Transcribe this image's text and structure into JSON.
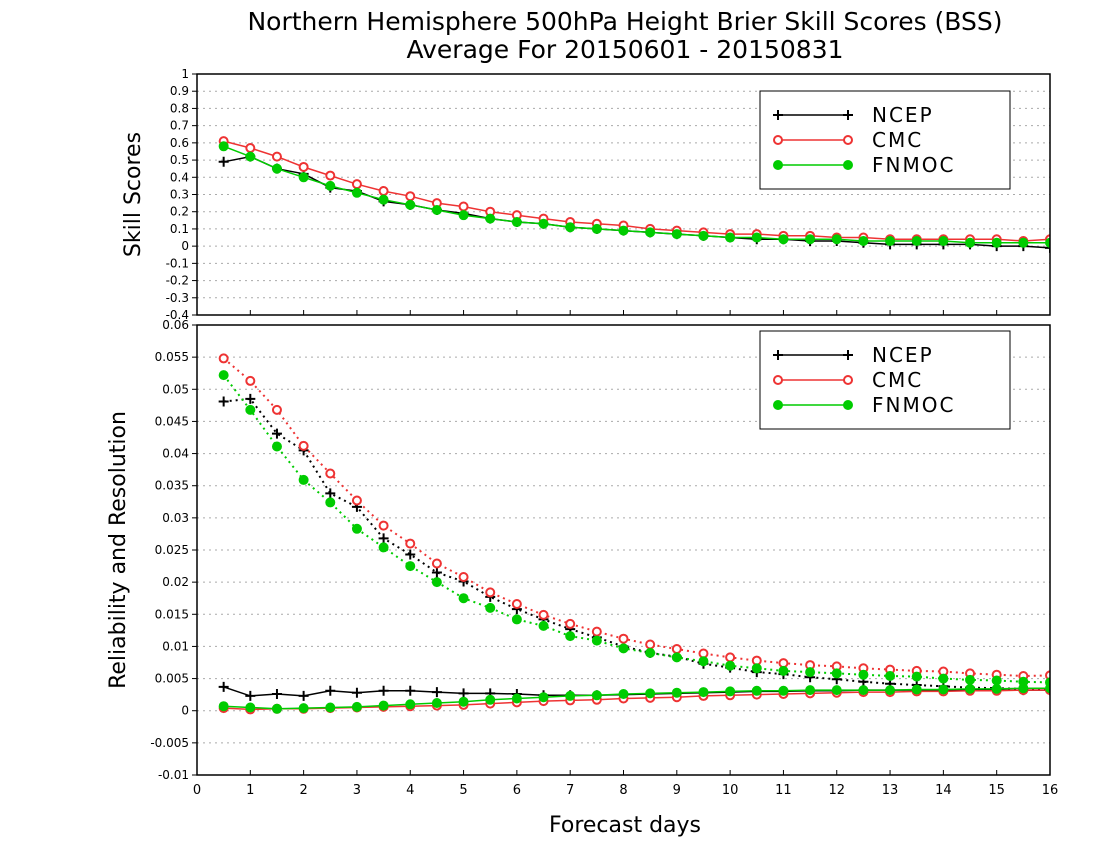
{
  "title_line1": "Northern Hemisphere 500hPa Height Brier Skill Scores (BSS)",
  "title_line2": "Average For 20150601 - 20150831",
  "xlabel": "Forecast days",
  "colors": {
    "NCEP": "#000000",
    "CMC": "#ee3333",
    "FNMOC": "#00cc00",
    "grid": "#aaaaaa"
  },
  "chart_data": [
    {
      "type": "line",
      "ylabel": "Skill Scores",
      "xlim": [
        0,
        16
      ],
      "ylim": [
        -0.4,
        1
      ],
      "x_ticks": [
        0,
        1,
        2,
        3,
        4,
        5,
        6,
        7,
        8,
        9,
        10,
        11,
        12,
        13,
        14,
        15,
        16
      ],
      "y_ticks": [
        -0.4,
        -0.3,
        -0.2,
        -0.1,
        0,
        0.1,
        0.2,
        0.3,
        0.4,
        0.5,
        0.6,
        0.7,
        0.8,
        0.9,
        1
      ],
      "y_tick_labels": [
        "-0.4",
        "-0.3",
        "-0.2",
        "-0.1",
        "0",
        "0.1",
        "0.2",
        "0.3",
        "0.4",
        "0.5",
        "0.6",
        "0.7",
        "0.8",
        "0.9",
        "1"
      ],
      "grid": "horizontal dotted",
      "legend": {
        "placement": "top-right",
        "entries": [
          "NCEP",
          "CMC",
          "FNMOC"
        ]
      },
      "x": [
        0.5,
        1,
        1.5,
        2,
        2.5,
        3,
        3.5,
        4,
        4.5,
        5,
        5.5,
        6,
        6.5,
        7,
        7.5,
        8,
        8.5,
        9,
        9.5,
        10,
        10.5,
        11,
        11.5,
        12,
        12.5,
        13,
        13.5,
        14,
        14.5,
        15,
        15.5,
        16
      ],
      "series": [
        {
          "name": "NCEP",
          "marker": "plus",
          "style": "solid",
          "values": [
            0.49,
            0.52,
            0.45,
            0.42,
            0.34,
            0.32,
            0.26,
            0.24,
            0.21,
            0.19,
            0.16,
            0.14,
            0.13,
            0.11,
            0.1,
            0.09,
            0.08,
            0.07,
            0.06,
            0.05,
            0.04,
            0.04,
            0.03,
            0.03,
            0.02,
            0.01,
            0.01,
            0.01,
            0.01,
            0.0,
            0.0,
            -0.01
          ]
        },
        {
          "name": "CMC",
          "marker": "open-circle",
          "style": "solid",
          "values": [
            0.61,
            0.57,
            0.52,
            0.46,
            0.41,
            0.36,
            0.32,
            0.29,
            0.25,
            0.23,
            0.2,
            0.18,
            0.16,
            0.14,
            0.13,
            0.12,
            0.1,
            0.09,
            0.08,
            0.07,
            0.07,
            0.06,
            0.06,
            0.05,
            0.05,
            0.04,
            0.04,
            0.04,
            0.04,
            0.04,
            0.03,
            0.04
          ]
        },
        {
          "name": "FNMOC",
          "marker": "filled-circle",
          "style": "solid",
          "values": [
            0.58,
            0.52,
            0.45,
            0.4,
            0.35,
            0.31,
            0.27,
            0.24,
            0.21,
            0.18,
            0.16,
            0.14,
            0.13,
            0.11,
            0.1,
            0.09,
            0.08,
            0.07,
            0.06,
            0.05,
            0.05,
            0.04,
            0.04,
            0.04,
            0.03,
            0.03,
            0.03,
            0.03,
            0.02,
            0.02,
            0.02,
            0.02
          ]
        }
      ]
    },
    {
      "type": "line",
      "ylabel": "Reliability and Resolution",
      "xlim": [
        0,
        16
      ],
      "ylim": [
        -0.01,
        0.06
      ],
      "x_ticks": [
        0,
        1,
        2,
        3,
        4,
        5,
        6,
        7,
        8,
        9,
        10,
        11,
        12,
        13,
        14,
        15,
        16
      ],
      "y_ticks": [
        -0.01,
        -0.005,
        0,
        0.005,
        0.01,
        0.015,
        0.02,
        0.025,
        0.03,
        0.035,
        0.04,
        0.045,
        0.05,
        0.055,
        0.06
      ],
      "y_tick_labels": [
        "-0.01",
        "-0.005",
        "0",
        "0.005",
        "0.01",
        "0.015",
        "0.02",
        "0.025",
        "0.03",
        "0.035",
        "0.04",
        "0.045",
        "0.05",
        "0.055",
        "0.06"
      ],
      "grid": "horizontal dotted",
      "legend": {
        "placement": "top-right",
        "entries": [
          "NCEP",
          "CMC",
          "FNMOC"
        ]
      },
      "x": [
        0.5,
        1,
        1.5,
        2,
        2.5,
        3,
        3.5,
        4,
        4.5,
        5,
        5.5,
        6,
        6.5,
        7,
        7.5,
        8,
        8.5,
        9,
        9.5,
        10,
        10.5,
        11,
        11.5,
        12,
        12.5,
        13,
        13.5,
        14,
        14.5,
        15,
        15.5,
        16
      ],
      "series": [
        {
          "name": "NCEP",
          "group": "resolution",
          "marker": "plus",
          "style": "dotted",
          "values": [
            0.0481,
            0.0485,
            0.0431,
            0.0405,
            0.0338,
            0.0317,
            0.0268,
            0.0243,
            0.0215,
            0.0201,
            0.0177,
            0.0158,
            0.0142,
            0.0127,
            0.0114,
            0.01,
            0.009,
            0.0084,
            0.0073,
            0.0067,
            0.006,
            0.0057,
            0.0052,
            0.0049,
            0.0045,
            0.0042,
            0.004,
            0.0038,
            0.0036,
            0.0035,
            0.0034,
            0.0032
          ]
        },
        {
          "name": "CMC",
          "group": "resolution",
          "marker": "open-circle",
          "style": "dotted",
          "values": [
            0.0548,
            0.0513,
            0.0468,
            0.0412,
            0.0369,
            0.0327,
            0.0288,
            0.026,
            0.0229,
            0.0208,
            0.0184,
            0.0166,
            0.0149,
            0.0135,
            0.0123,
            0.0112,
            0.0103,
            0.0096,
            0.0089,
            0.0083,
            0.0078,
            0.0074,
            0.0071,
            0.0069,
            0.0066,
            0.0064,
            0.0062,
            0.0061,
            0.0058,
            0.0056,
            0.0054,
            0.0055
          ]
        },
        {
          "name": "FNMOC",
          "group": "resolution",
          "marker": "filled-circle",
          "style": "dotted",
          "values": [
            0.0522,
            0.0468,
            0.0411,
            0.0359,
            0.0324,
            0.0283,
            0.0254,
            0.0225,
            0.02,
            0.0175,
            0.016,
            0.0142,
            0.0132,
            0.0116,
            0.0109,
            0.0097,
            0.009,
            0.0083,
            0.0077,
            0.007,
            0.0066,
            0.0062,
            0.006,
            0.0058,
            0.0056,
            0.0054,
            0.0053,
            0.005,
            0.0048,
            0.0047,
            0.0045,
            0.0044
          ]
        },
        {
          "name": "NCEP",
          "group": "reliability",
          "marker": "plus",
          "style": "solid",
          "values": [
            0.0037,
            0.0023,
            0.0026,
            0.0023,
            0.0031,
            0.0028,
            0.0031,
            0.0031,
            0.0029,
            0.0027,
            0.0027,
            0.0026,
            0.0024,
            0.0024,
            0.0024,
            0.0025,
            0.0026,
            0.0027,
            0.0028,
            0.0029,
            0.003,
            0.003,
            0.0031,
            0.0031,
            0.0032,
            0.0032,
            0.0032,
            0.0032,
            0.0032,
            0.0032,
            0.0032,
            0.0032
          ]
        },
        {
          "name": "CMC",
          "group": "reliability",
          "marker": "open-circle",
          "style": "solid",
          "values": [
            0.0004,
            0.0002,
            0.0003,
            0.0003,
            0.0004,
            0.0005,
            0.0006,
            0.0007,
            0.0008,
            0.0009,
            0.0011,
            0.0013,
            0.0015,
            0.0016,
            0.0017,
            0.0019,
            0.002,
            0.0021,
            0.0023,
            0.0024,
            0.0025,
            0.0026,
            0.0027,
            0.0028,
            0.0029,
            0.0029,
            0.003,
            0.003,
            0.0031,
            0.0031,
            0.0032,
            0.0032
          ]
        },
        {
          "name": "FNMOC",
          "group": "reliability",
          "marker": "filled-circle",
          "style": "solid",
          "values": [
            0.0007,
            0.0005,
            0.0003,
            0.0004,
            0.0005,
            0.0006,
            0.0008,
            0.001,
            0.0012,
            0.0014,
            0.0017,
            0.0019,
            0.0021,
            0.0023,
            0.0024,
            0.0026,
            0.0027,
            0.0028,
            0.0029,
            0.003,
            0.0031,
            0.0031,
            0.0032,
            0.0032,
            0.0032,
            0.0032,
            0.0033,
            0.0033,
            0.0034,
            0.0034,
            0.0035,
            0.0035
          ]
        }
      ]
    }
  ]
}
